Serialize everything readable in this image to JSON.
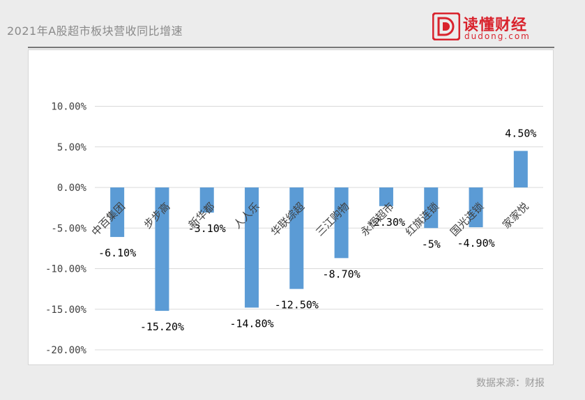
{
  "header": {
    "title": "2021年A股超市板块营收同比增速"
  },
  "brand": {
    "name": "读懂财经",
    "url": "dudong.com",
    "colors": {
      "primary": "#d9232d"
    }
  },
  "source": "数据来源：财报",
  "chart_data": {
    "type": "bar",
    "title": "2021年A股超市板块营收同比增速",
    "xlabel": "",
    "ylabel": "",
    "categories": [
      "中百集团",
      "步步高",
      "新华都",
      "人人乐",
      "华联综超",
      "三江购物",
      "永辉超市",
      "红旗连锁",
      "国光连锁",
      "家家悦"
    ],
    "values": [
      -6.1,
      -15.2,
      -3.1,
      -14.8,
      -12.5,
      -8.7,
      -2.3,
      -5.0,
      -4.9,
      4.5
    ],
    "data_labels": [
      "-6.10%",
      "-15.20%",
      "-3.10%",
      "-14.80%",
      "-12.50%",
      "-8.70%",
      "-2.30%",
      "-5%",
      "-4.90%",
      "4.50%"
    ],
    "yticks": [
      10,
      5,
      0,
      -5,
      -10,
      -15,
      -20
    ],
    "ytick_labels": [
      "10.00%",
      "5.00%",
      "0.00%",
      "-5.00%",
      "-10.00%",
      "-15.00%",
      "-20.00%"
    ],
    "ylim": [
      -20,
      10
    ],
    "grid": true,
    "legend": "none",
    "bar_color": "#5b9bd5",
    "grid_color": "#d9d9d9"
  }
}
